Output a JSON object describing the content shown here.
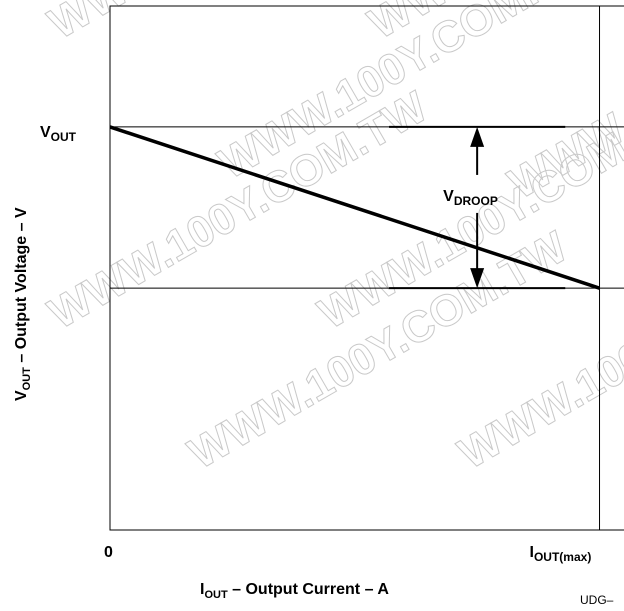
{
  "chart_data": {
    "type": "line",
    "title": "",
    "xlabel": {
      "main": "I",
      "sub": "OUT",
      "rest": " – Output Current – A"
    },
    "ylabel": {
      "main": "V",
      "sub": "OUT",
      "rest": " – Output Voltage – V"
    },
    "x_ticks": [
      {
        "main": "0",
        "sub": ""
      },
      {
        "main": "I",
        "sub": "OUT(max)"
      }
    ],
    "y_ticks": [
      {
        "main": "V",
        "sub": "OUT"
      }
    ],
    "xlim": [
      0,
      1.05
    ],
    "ylim": [
      0,
      1.3
    ],
    "series": [
      {
        "x": [
          0,
          1
        ],
        "y": [
          1,
          0.6
        ]
      }
    ],
    "reference_lines": {
      "horizontal": [
        1,
        0.6
      ],
      "vertical": [
        1
      ]
    },
    "annotation": {
      "main": "V",
      "sub": "DROOP",
      "x": 0.75,
      "y_top": 1,
      "y_bottom": 0.6,
      "bar_half_width": 0.18
    },
    "grid": false,
    "legend": "none"
  },
  "figure_id": "UDG–",
  "watermark": "WWW.100Y.COM.TW"
}
